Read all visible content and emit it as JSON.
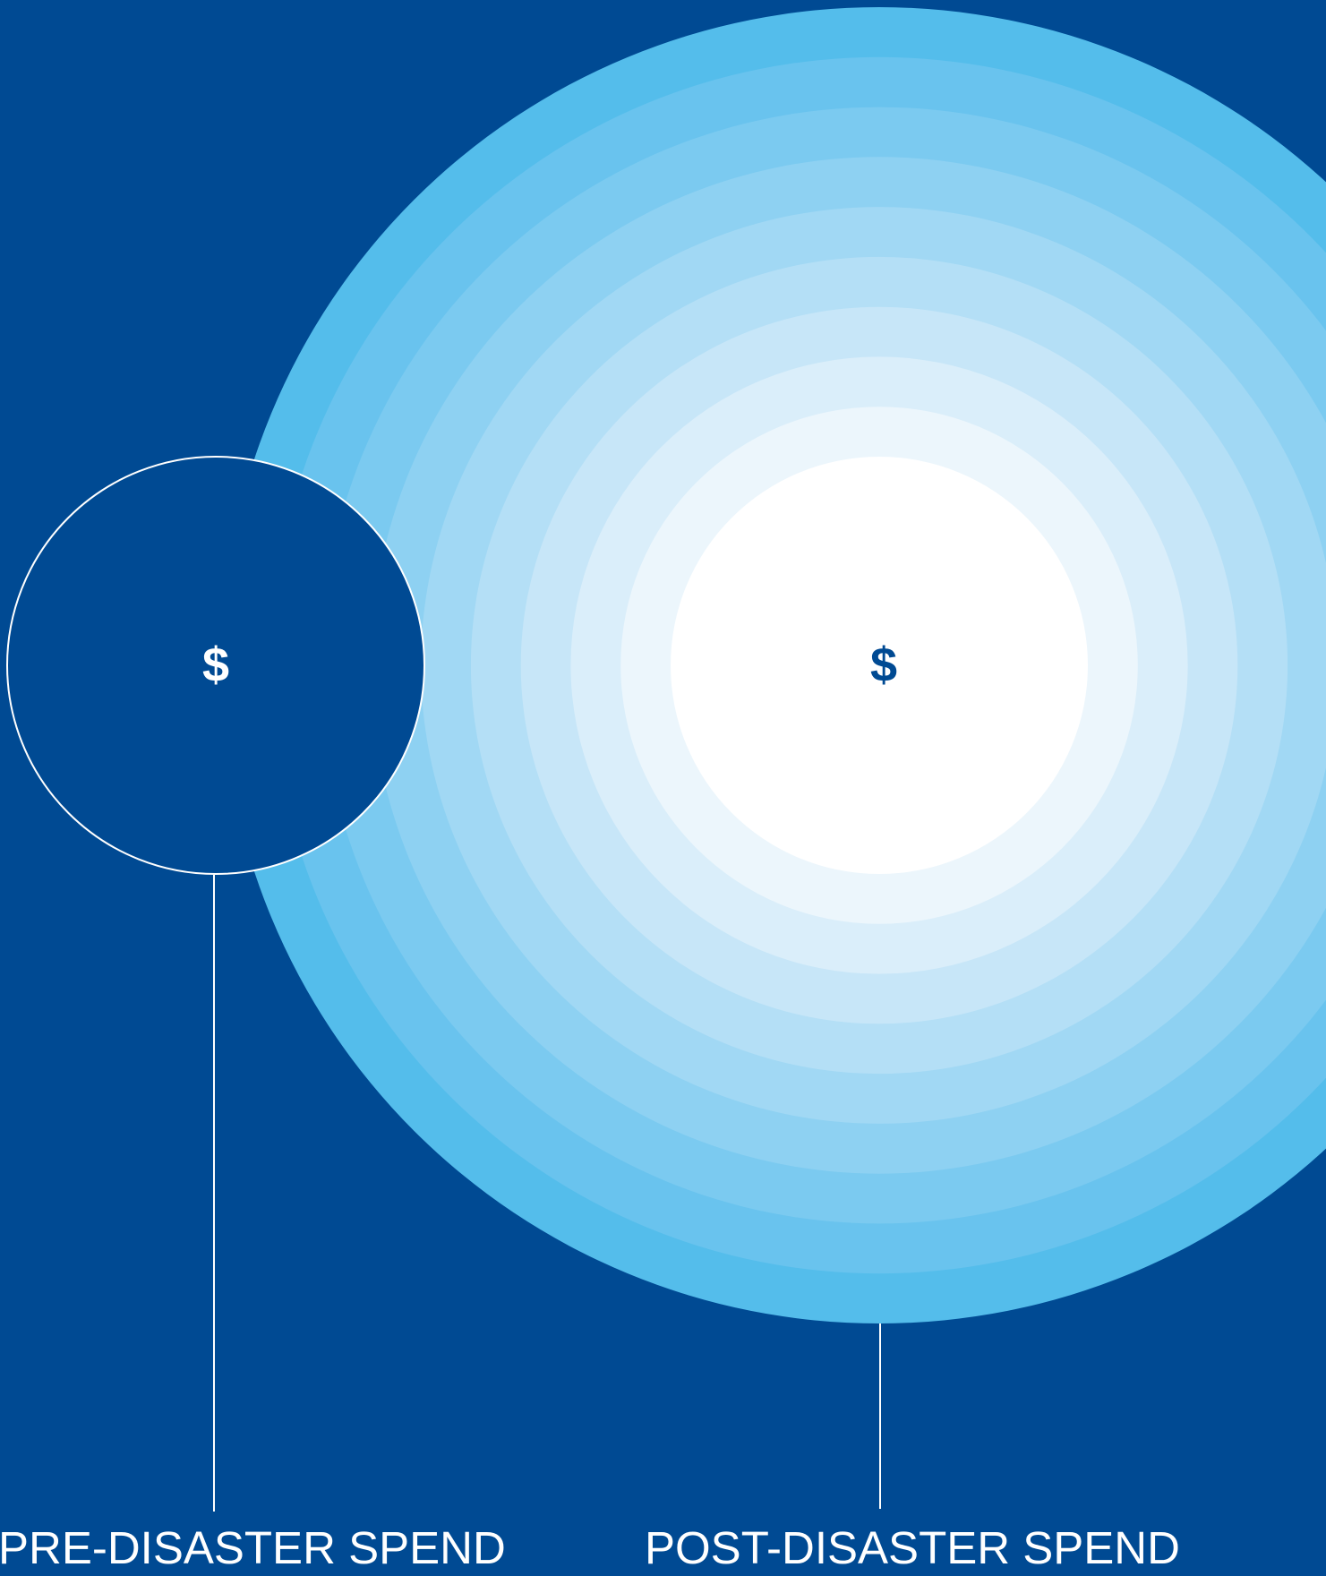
{
  "colors": {
    "background": "#004A93",
    "small_circle_fill": "#004A93",
    "small_circle_stroke": "#FFFFFF",
    "connector_line": "#FFFFFF",
    "large_circle_rings": [
      "#54BDEB",
      "#69C3EE",
      "#7BCAF0",
      "#8ED1F2",
      "#A1D8F4",
      "#B4DFF6",
      "#C7E6F8",
      "#DAEEFA",
      "#ECF6FC",
      "#FFFFFF"
    ],
    "pre_symbol": "#FFFFFF",
    "post_symbol": "#004A93"
  },
  "diagram": {
    "pre_disaster": {
      "symbol": "$",
      "label": "PRE-DISASTER SPEND"
    },
    "post_disaster": {
      "symbol": "$",
      "label": "POST-DISASTER SPEND"
    }
  }
}
